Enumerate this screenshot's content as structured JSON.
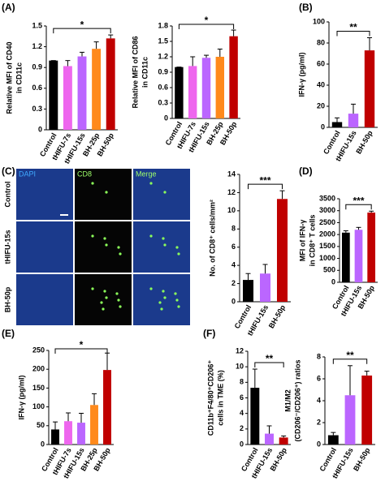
{
  "chart_data": [
    {
      "type": "bar",
      "panel": "(A)",
      "ylabel": [
        "Relative MFI of CD40",
        "in CD11c"
      ],
      "categories": [
        "Control",
        "tHIFU-7s",
        "tHIFU-15s",
        "BH-25p",
        "BH-50p"
      ],
      "values": [
        1.0,
        0.92,
        1.06,
        1.17,
        1.32
      ],
      "errors": [
        0,
        0.08,
        0.06,
        0.1,
        0.05
      ],
      "colors": [
        "#000000",
        "#ee66ee",
        "#bb66ff",
        "#ff8a1c",
        "#c00000"
      ],
      "ylim": [
        0,
        1.5
      ],
      "yticks": [
        0,
        0.3,
        0.6,
        0.9,
        1.2,
        1.5
      ],
      "annotation": "*"
    },
    {
      "type": "bar",
      "ylabel": [
        "Relative MFI of CD86",
        "in CD11c"
      ],
      "categories": [
        "Control",
        "tHIFU-7s",
        "tHIFU-15s",
        "BH-25p",
        "BH-50p"
      ],
      "values": [
        1.0,
        1.02,
        1.18,
        1.2,
        1.6
      ],
      "errors": [
        0,
        0.18,
        0.05,
        0.15,
        0.12
      ],
      "colors": [
        "#000000",
        "#ee66ee",
        "#bb66ff",
        "#ff8a1c",
        "#c00000"
      ],
      "ylim": [
        0,
        1.8
      ],
      "yticks": [
        0,
        0.3,
        0.6,
        0.9,
        1.2,
        1.5,
        1.8
      ],
      "annotation": "*"
    },
    {
      "type": "bar",
      "panel": "(B)",
      "ylabel": [
        "IFN-γ (pg/ml)"
      ],
      "categories": [
        "Control",
        "tHIFU-15s",
        "BH-50p"
      ],
      "values": [
        5,
        13,
        73
      ],
      "errors": [
        4,
        9,
        12
      ],
      "colors": [
        "#000000",
        "#bb66ff",
        "#c00000"
      ],
      "ylim": [
        0,
        100
      ],
      "yticks": [
        0,
        20,
        40,
        60,
        80,
        100
      ],
      "annotation": "**"
    },
    {
      "type": "bar",
      "ylabel": [
        "No. of CD8⁺ cells/mm²"
      ],
      "categories": [
        "Control",
        "tHIFU-15s",
        "BH-50p"
      ],
      "values": [
        2.4,
        3.1,
        11.3
      ],
      "errors": [
        0.7,
        1.0,
        0.9
      ],
      "colors": [
        "#000000",
        "#bb66ff",
        "#c00000"
      ],
      "ylim": [
        0,
        14
      ],
      "yticks": [
        0,
        2,
        4,
        6,
        8,
        10,
        12,
        14
      ],
      "annotation": "***"
    },
    {
      "type": "bar",
      "panel": "(D)",
      "ylabel": [
        "MFI of IFN-γ",
        "in CD8⁺ T cells"
      ],
      "categories": [
        "Control",
        "tHIFU-15s",
        "BH-50p"
      ],
      "values": [
        2080,
        2200,
        2920
      ],
      "errors": [
        80,
        100,
        60
      ],
      "colors": [
        "#000000",
        "#bb66ff",
        "#c00000"
      ],
      "ylim": [
        0,
        3500
      ],
      "yticks": [
        0,
        500,
        1000,
        1500,
        2000,
        2500,
        3000,
        3500
      ],
      "annotation": "***"
    },
    {
      "type": "bar",
      "panel": "(E)",
      "ylabel": [
        "IFN-γ (pg/ml)"
      ],
      "categories": [
        "Control",
        "tHIFU-7s",
        "tHIFU-15s",
        "BH-25p",
        "BH-50p"
      ],
      "values": [
        40,
        62,
        58,
        105,
        198
      ],
      "errors": [
        20,
        22,
        25,
        30,
        45
      ],
      "colors": [
        "#000000",
        "#ee66ee",
        "#bb66ff",
        "#ff8a1c",
        "#c00000"
      ],
      "ylim": [
        0,
        250
      ],
      "yticks": [
        0,
        50,
        100,
        150,
        200,
        250
      ],
      "annotation": "*"
    },
    {
      "type": "bar",
      "panel": "(F)",
      "ylabel": [
        "CD11b⁺F4/80⁺CD206⁺",
        "cells in TME (%)"
      ],
      "categories": [
        "Control",
        "tHIFU-15s",
        "BH-50p"
      ],
      "values": [
        7.3,
        1.4,
        0.9
      ],
      "errors": [
        2.4,
        1.0,
        0.2
      ],
      "colors": [
        "#000000",
        "#bb66ff",
        "#c00000"
      ],
      "ylim": [
        0,
        12
      ],
      "yticks": [
        0,
        2,
        4,
        6,
        8,
        10,
        12
      ],
      "annotation": "**"
    },
    {
      "type": "bar",
      "ylabel": [
        "M1/M2",
        "(CD206⁻/CD206⁺) ratios"
      ],
      "categories": [
        "Control",
        "tHIFU-15s",
        "BH-50p"
      ],
      "values": [
        0.85,
        4.5,
        6.3
      ],
      "errors": [
        0.25,
        2.7,
        0.4
      ],
      "colors": [
        "#000000",
        "#bb66ff",
        "#c00000"
      ],
      "ylim": [
        0,
        8
      ],
      "yticks": [
        0,
        2,
        4,
        6,
        8
      ],
      "annotation": "**"
    }
  ],
  "images": {
    "panel": "(C)",
    "columns": [
      "DAPI",
      "CD8",
      "Merge"
    ],
    "rows": [
      "Control",
      "tHIFU-15s",
      "BH-50p"
    ]
  }
}
